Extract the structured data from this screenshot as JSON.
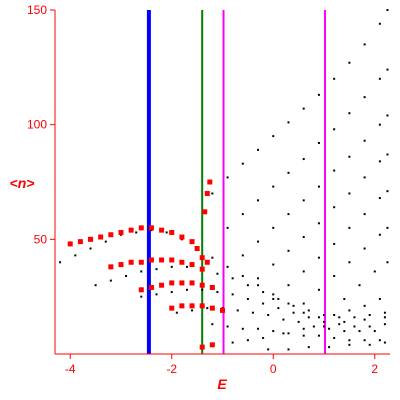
{
  "chart_data": {
    "type": "scatter",
    "xlabel": "E",
    "ylabel": "<n>",
    "xlim": [
      -4.3,
      2.3
    ],
    "ylim": [
      0,
      150
    ],
    "xticks": [
      -4,
      -2,
      0,
      2
    ],
    "yticks": [
      50,
      100,
      150
    ],
    "x_tick_labels": [
      "-4",
      "-2",
      "0",
      "2"
    ],
    "y_tick_labels": [
      "50",
      "100",
      "150"
    ],
    "grid": false,
    "axis_color": "#ff0000",
    "vertical_lines": [
      {
        "x": -2.45,
        "color": "#0000ff"
      },
      {
        "x": -1.4,
        "color": "#008000"
      },
      {
        "x": -0.98,
        "color": "#ff00ff"
      },
      {
        "x": 1.02,
        "color": "#ff00ff"
      }
    ],
    "series": [
      {
        "color": "#000000",
        "marker": "dot",
        "description_points": [
          [
            -4.2,
            40
          ],
          [
            -3.9,
            43
          ],
          [
            -3.6,
            46
          ],
          [
            -3.3,
            49
          ],
          [
            -3.0,
            52
          ],
          [
            -2.7,
            53
          ],
          [
            -2.4,
            54
          ],
          [
            -2.1,
            53
          ],
          [
            -1.8,
            50
          ],
          [
            -1.5,
            46
          ],
          [
            -1.2,
            42
          ],
          [
            -0.9,
            38
          ],
          [
            -0.6,
            34
          ],
          [
            -0.3,
            30
          ],
          [
            0.0,
            26
          ],
          [
            0.3,
            22
          ],
          [
            0.6,
            18
          ],
          [
            0.9,
            16
          ],
          [
            1.2,
            17
          ],
          [
            1.5,
            19
          ],
          [
            1.8,
            21
          ],
          [
            2.1,
            24
          ],
          [
            -3.5,
            30
          ],
          [
            -3.2,
            32
          ],
          [
            -2.9,
            34
          ],
          [
            -2.6,
            36
          ],
          [
            -2.3,
            37
          ],
          [
            -2.0,
            38
          ],
          [
            -1.7,
            38
          ],
          [
            -1.4,
            37
          ],
          [
            -1.1,
            35
          ],
          [
            -0.8,
            33
          ],
          [
            -0.5,
            30
          ],
          [
            -0.2,
            27
          ],
          [
            0.1,
            24
          ],
          [
            0.4,
            21
          ],
          [
            0.7,
            19
          ],
          [
            1.0,
            17
          ],
          [
            1.3,
            16
          ],
          [
            1.6,
            16
          ],
          [
            1.9,
            17
          ],
          [
            2.2,
            18
          ],
          [
            -2.6,
            25
          ],
          [
            -2.3,
            26
          ],
          [
            -2.0,
            27
          ],
          [
            -1.7,
            28
          ],
          [
            -1.4,
            28
          ],
          [
            -1.1,
            27
          ],
          [
            -0.8,
            26
          ],
          [
            -0.5,
            24
          ],
          [
            -0.2,
            22
          ],
          [
            0.1,
            20
          ],
          [
            0.4,
            18
          ],
          [
            0.7,
            16
          ],
          [
            1.0,
            14
          ],
          [
            1.3,
            13
          ],
          [
            1.6,
            12
          ],
          [
            1.9,
            12
          ],
          [
            2.2,
            13
          ],
          [
            -1.9,
            18
          ],
          [
            -1.6,
            19
          ],
          [
            -1.3,
            20
          ],
          [
            -1.0,
            20
          ],
          [
            -0.7,
            19
          ],
          [
            -0.4,
            18
          ],
          [
            -0.1,
            17
          ],
          [
            0.2,
            15
          ],
          [
            0.5,
            14
          ],
          [
            0.8,
            12
          ],
          [
            1.1,
            11
          ],
          [
            1.4,
            10
          ],
          [
            1.7,
            10
          ],
          [
            2.0,
            10
          ],
          [
            -1.2,
            13
          ],
          [
            -0.9,
            12
          ],
          [
            -0.6,
            11
          ],
          [
            -0.3,
            11
          ],
          [
            0.0,
            10
          ],
          [
            0.3,
            9
          ],
          [
            0.6,
            8
          ],
          [
            0.9,
            8
          ],
          [
            1.2,
            7
          ],
          [
            1.5,
            6
          ],
          [
            1.8,
            6
          ],
          [
            2.1,
            6
          ],
          [
            -1.2,
            70
          ],
          [
            -0.9,
            77
          ],
          [
            -0.6,
            83
          ],
          [
            -0.3,
            89
          ],
          [
            0.0,
            95
          ],
          [
            0.3,
            101
          ],
          [
            0.6,
            107
          ],
          [
            0.9,
            113
          ],
          [
            1.2,
            120
          ],
          [
            1.5,
            127
          ],
          [
            1.8,
            135
          ],
          [
            2.1,
            144
          ],
          [
            2.25,
            150
          ],
          [
            -0.9,
            55
          ],
          [
            -0.6,
            61
          ],
          [
            -0.3,
            67
          ],
          [
            0.0,
            73
          ],
          [
            0.3,
            79
          ],
          [
            0.6,
            85
          ],
          [
            0.9,
            92
          ],
          [
            1.2,
            98
          ],
          [
            1.5,
            105
          ],
          [
            1.8,
            112
          ],
          [
            2.1,
            120
          ],
          [
            2.25,
            124
          ],
          [
            -0.6,
            43
          ],
          [
            -0.3,
            49
          ],
          [
            0.0,
            55
          ],
          [
            0.3,
            61
          ],
          [
            0.6,
            67
          ],
          [
            0.9,
            73
          ],
          [
            1.2,
            80
          ],
          [
            1.5,
            86
          ],
          [
            1.8,
            93
          ],
          [
            2.1,
            100
          ],
          [
            2.25,
            104
          ],
          [
            -0.3,
            33
          ],
          [
            0.0,
            39
          ],
          [
            0.3,
            45
          ],
          [
            0.6,
            51
          ],
          [
            0.9,
            57
          ],
          [
            1.2,
            64
          ],
          [
            1.5,
            70
          ],
          [
            1.8,
            77
          ],
          [
            2.1,
            84
          ],
          [
            2.25,
            87
          ],
          [
            0.0,
            24
          ],
          [
            0.3,
            30
          ],
          [
            0.6,
            36
          ],
          [
            0.9,
            42
          ],
          [
            1.2,
            48
          ],
          [
            1.5,
            55
          ],
          [
            1.8,
            61
          ],
          [
            2.1,
            68
          ],
          [
            2.25,
            71
          ],
          [
            0.6,
            22
          ],
          [
            0.9,
            28
          ],
          [
            1.2,
            34
          ],
          [
            1.5,
            40
          ],
          [
            1.8,
            46
          ],
          [
            2.1,
            52
          ],
          [
            2.25,
            55
          ],
          [
            1.4,
            24
          ],
          [
            1.7,
            30
          ],
          [
            2.0,
            36
          ],
          [
            2.25,
            40
          ],
          [
            -0.1,
            2
          ],
          [
            0.3,
            2
          ],
          [
            0.7,
            3
          ],
          [
            1.1,
            3
          ],
          [
            1.5,
            4
          ],
          [
            1.9,
            4
          ],
          [
            2.2,
            5
          ],
          [
            -0.8,
            5
          ],
          [
            -0.5,
            6
          ],
          [
            -0.2,
            7
          ],
          [
            0.2,
            9
          ],
          [
            0.6,
            11
          ],
          [
            1.0,
            12
          ],
          [
            1.4,
            14
          ],
          [
            1.8,
            15
          ],
          [
            2.2,
            16
          ]
        ]
      },
      {
        "color": "#ff0000",
        "marker": "square",
        "description_points": [
          [
            -4.0,
            48
          ],
          [
            -3.8,
            49
          ],
          [
            -3.6,
            50
          ],
          [
            -3.4,
            51
          ],
          [
            -3.2,
            52
          ],
          [
            -3.0,
            53
          ],
          [
            -2.8,
            54
          ],
          [
            -2.6,
            55
          ],
          [
            -2.4,
            55
          ],
          [
            -2.2,
            54
          ],
          [
            -2.0,
            53
          ],
          [
            -1.8,
            51
          ],
          [
            -1.6,
            49
          ],
          [
            -1.5,
            46
          ],
          [
            -1.4,
            42
          ],
          [
            -1.3,
            40
          ],
          [
            -3.2,
            38
          ],
          [
            -3.0,
            39
          ],
          [
            -2.8,
            40
          ],
          [
            -2.6,
            40
          ],
          [
            -2.4,
            41
          ],
          [
            -2.2,
            41
          ],
          [
            -2.0,
            41
          ],
          [
            -1.8,
            40
          ],
          [
            -1.6,
            39
          ],
          [
            -1.4,
            37
          ],
          [
            -2.6,
            28
          ],
          [
            -2.4,
            29
          ],
          [
            -2.2,
            30
          ],
          [
            -2.0,
            31
          ],
          [
            -1.8,
            31
          ],
          [
            -1.6,
            31
          ],
          [
            -1.4,
            30
          ],
          [
            -1.2,
            29
          ],
          [
            -2.0,
            20
          ],
          [
            -1.8,
            21
          ],
          [
            -1.6,
            21
          ],
          [
            -1.4,
            21
          ],
          [
            -1.2,
            20
          ],
          [
            -1.0,
            19
          ],
          [
            -1.35,
            62
          ],
          [
            -1.3,
            70
          ],
          [
            -1.25,
            75
          ],
          [
            -1.4,
            3
          ],
          [
            -1.2,
            4
          ]
        ]
      }
    ]
  }
}
